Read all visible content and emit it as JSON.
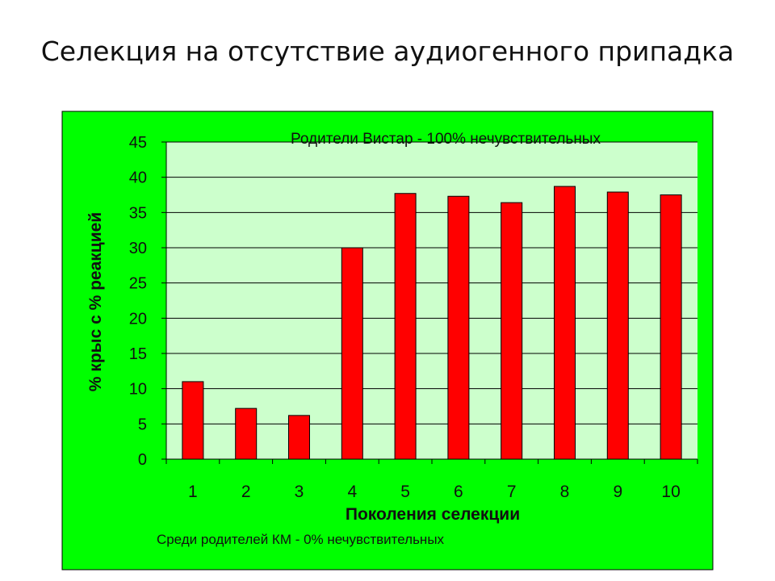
{
  "slide_title": "Селекция на отсутствие аудиогенного припадка",
  "colors": {
    "outer_background": "#00ff00",
    "plot_background": "#ccffcc",
    "bar_fill": "#ff0000",
    "bar_stroke": "#000000"
  },
  "chart_data": {
    "type": "bar",
    "categories": [
      "1",
      "2",
      "3",
      "4",
      "5",
      "6",
      "7",
      "8",
      "9",
      "10"
    ],
    "values": [
      11,
      7.2,
      6.2,
      30,
      37.7,
      37.3,
      36.4,
      38.7,
      37.9,
      37.5
    ],
    "ylim": [
      0,
      45
    ],
    "yticks": [
      0,
      5,
      10,
      15,
      20,
      25,
      30,
      35,
      40,
      45
    ],
    "ytick_labels": [
      "0",
      "5",
      "10",
      "15",
      "20",
      "25",
      "30",
      "35",
      "40",
      "45"
    ],
    "xlabel": "Поколения селекции",
    "ylabel": "% крыс с % реакцией",
    "grid": true,
    "annotations": {
      "top": "Родители Вистар - 100% нечувствительных",
      "bottom": "Среди родителей КМ - 0% нечувствительных"
    }
  }
}
